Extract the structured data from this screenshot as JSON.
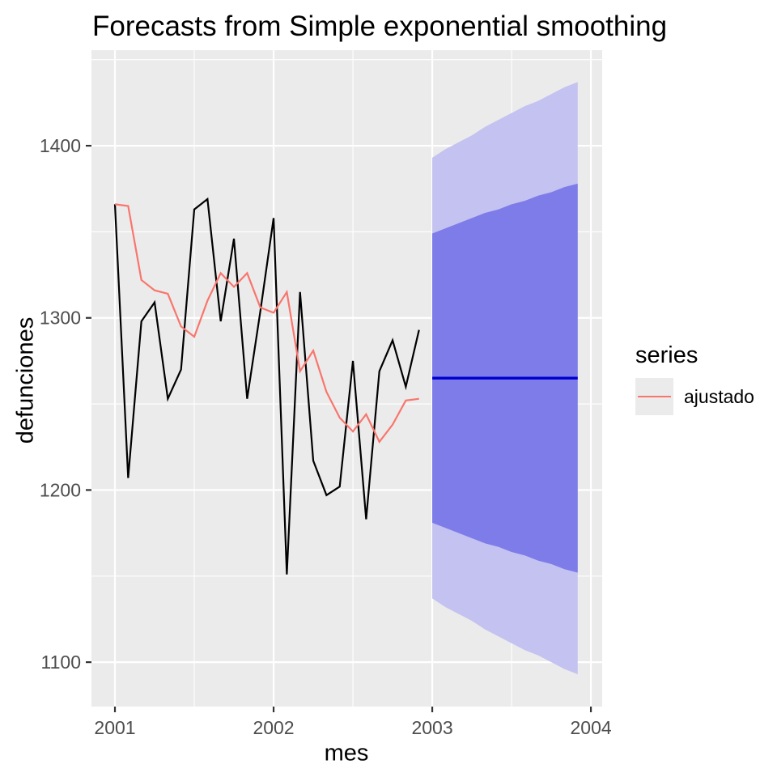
{
  "title": "Forecasts from Simple exponential smoothing",
  "x_axis": {
    "label": "mes",
    "tick_labels": [
      "2001",
      "2002",
      "2003",
      "2004"
    ],
    "tick_values": [
      2001,
      2002,
      2003,
      2004
    ],
    "minor_ticks": [
      2001.5,
      2002.5,
      2003.5
    ]
  },
  "y_axis": {
    "label": "defunciones",
    "tick_labels": [
      "1100",
      "1200",
      "1300",
      "1400"
    ],
    "tick_values": [
      1100,
      1200,
      1300,
      1400
    ],
    "minor_ticks": [
      1150,
      1250,
      1350,
      1450
    ]
  },
  "legend": {
    "title": "series",
    "items": [
      {
        "label": "ajustado",
        "color": "#F8766D"
      }
    ]
  },
  "colors": {
    "panel_background": "#EBEBEB",
    "gridline": "#FFFFFF",
    "tick_text": "#4D4D4D",
    "tick_mark": "#333333",
    "observed_line": "#000000",
    "fitted_line": "#F8766D",
    "forecast_mean_line": "#0000CD",
    "band_80": "#7D7CE9",
    "band_95": "#C4C2F0"
  },
  "chart_data": {
    "type": "line",
    "title": "Forecasts from Simple exponential smoothing",
    "xlabel": "mes",
    "ylabel": "defunciones",
    "xlim": [
      2000.852,
      2004.071
    ],
    "ylim": [
      1074.2,
      1455.5
    ],
    "grid": true,
    "legend_position": "right",
    "series": [
      {
        "name": "defunciones",
        "color": "#000000",
        "x": [
          2001,
          2001.0833,
          2001.1667,
          2001.25,
          2001.3333,
          2001.4167,
          2001.5,
          2001.5833,
          2001.6667,
          2001.75,
          2001.8333,
          2001.9167,
          2002,
          2002.0833,
          2002.1667,
          2002.25,
          2002.3333,
          2002.4167,
          2002.5,
          2002.5833,
          2002.6667,
          2002.75,
          2002.8333,
          2002.9167
        ],
        "values": [
          1366,
          1207,
          1298,
          1309,
          1253,
          1270,
          1363,
          1369,
          1298,
          1346,
          1253,
          1304,
          1358,
          1151,
          1315,
          1217,
          1197,
          1202,
          1275,
          1183,
          1269,
          1287,
          1260,
          1293
        ]
      },
      {
        "name": "ajustado",
        "color": "#F8766D",
        "x": [
          2001,
          2001.0833,
          2001.1667,
          2001.25,
          2001.3333,
          2001.4167,
          2001.5,
          2001.5833,
          2001.6667,
          2001.75,
          2001.8333,
          2001.9167,
          2002,
          2002.0833,
          2002.1667,
          2002.25,
          2002.3333,
          2002.4167,
          2002.5,
          2002.5833,
          2002.6667,
          2002.75,
          2002.8333,
          2002.9167
        ],
        "values": [
          1366,
          1365,
          1322,
          1316,
          1314,
          1295,
          1289,
          1310,
          1326,
          1318,
          1326,
          1306,
          1303,
          1315,
          1269,
          1281,
          1257,
          1242,
          1234,
          1244,
          1228,
          1238,
          1252,
          1253
        ]
      }
    ],
    "forecast": {
      "x": [
        2003,
        2003.0833,
        2003.1667,
        2003.25,
        2003.3333,
        2003.4167,
        2003.5,
        2003.5833,
        2003.6667,
        2003.75,
        2003.8333,
        2003.9167
      ],
      "mean": [
        1265,
        1265,
        1265,
        1265,
        1265,
        1265,
        1265,
        1265,
        1265,
        1265,
        1265,
        1265
      ],
      "mean_color": "#0000CD",
      "level_80": {
        "fill": "#7D7CE9",
        "lo": [
          1181,
          1178,
          1175,
          1172,
          1169,
          1167,
          1164,
          1162,
          1159,
          1157,
          1154,
          1152
        ],
        "hi": [
          1349,
          1352,
          1355,
          1358,
          1361,
          1363,
          1366,
          1368,
          1371,
          1373,
          1376,
          1378
        ]
      },
      "level_95": {
        "fill": "#C4C2F0",
        "lo": [
          1137,
          1132,
          1128,
          1124,
          1119,
          1115,
          1111,
          1107,
          1104,
          1100,
          1096,
          1093
        ],
        "hi": [
          1393,
          1398,
          1402,
          1406,
          1411,
          1415,
          1419,
          1423,
          1426,
          1430,
          1434,
          1437
        ]
      }
    }
  }
}
